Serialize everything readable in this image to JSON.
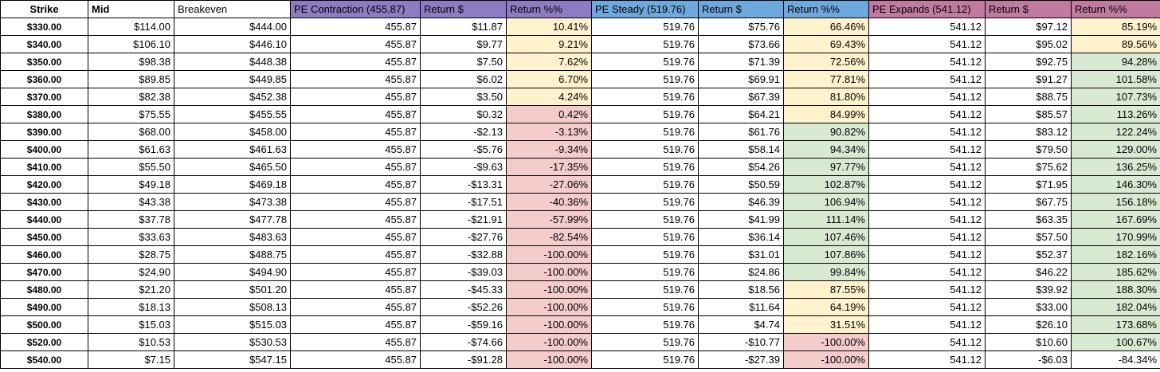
{
  "colors": {
    "contraction_header": "#8e7cc3",
    "steady_header": "#6fa8dc",
    "expands_header": "#c27ba0",
    "return_yellow": "#fff2cc",
    "return_red": "#f4cccc",
    "return_green": "#d9ead3"
  },
  "headers": [
    "Strike",
    "Mid",
    "Breakeven",
    "PE Contraction (455.87)",
    "Return $",
    "Return %%",
    "PE Steady (519.76)",
    "Return $",
    "Return %%",
    "PE Expands (541.12)",
    "Return $",
    "Return %%"
  ],
  "rows": [
    {
      "strike": "$330.00",
      "mid": "$114.00",
      "breakeven": "$444.00",
      "c_price": "455.87",
      "c_ret": "$11.87",
      "c_pct": "10.41%",
      "c_color": "yellow",
      "s_price": "519.76",
      "s_ret": "$75.76",
      "s_pct": "66.46%",
      "s_color": "yellow",
      "e_price": "541.12",
      "e_ret": "$97.12",
      "e_pct": "85.19%",
      "e_color": "yellow"
    },
    {
      "strike": "$340.00",
      "mid": "$106.10",
      "breakeven": "$446.10",
      "c_price": "455.87",
      "c_ret": "$9.77",
      "c_pct": "9.21%",
      "c_color": "yellow",
      "s_price": "519.76",
      "s_ret": "$73.66",
      "s_pct": "69.43%",
      "s_color": "yellow",
      "e_price": "541.12",
      "e_ret": "$95.02",
      "e_pct": "89.56%",
      "e_color": "yellow"
    },
    {
      "strike": "$350.00",
      "mid": "$98.38",
      "breakeven": "$448.38",
      "c_price": "455.87",
      "c_ret": "$7.50",
      "c_pct": "7.62%",
      "c_color": "yellow",
      "s_price": "519.76",
      "s_ret": "$71.39",
      "s_pct": "72.56%",
      "s_color": "yellow",
      "e_price": "541.12",
      "e_ret": "$92.75",
      "e_pct": "94.28%",
      "e_color": "green"
    },
    {
      "strike": "$360.00",
      "mid": "$89.85",
      "breakeven": "$449.85",
      "c_price": "455.87",
      "c_ret": "$6.02",
      "c_pct": "6.70%",
      "c_color": "yellow",
      "s_price": "519.76",
      "s_ret": "$69.91",
      "s_pct": "77.81%",
      "s_color": "yellow",
      "e_price": "541.12",
      "e_ret": "$91.27",
      "e_pct": "101.58%",
      "e_color": "green"
    },
    {
      "strike": "$370.00",
      "mid": "$82.38",
      "breakeven": "$452.38",
      "c_price": "455.87",
      "c_ret": "$3.50",
      "c_pct": "4.24%",
      "c_color": "yellow",
      "s_price": "519.76",
      "s_ret": "$67.39",
      "s_pct": "81.80%",
      "s_color": "yellow",
      "e_price": "541.12",
      "e_ret": "$88.75",
      "e_pct": "107.73%",
      "e_color": "green"
    },
    {
      "strike": "$380.00",
      "mid": "$75.55",
      "breakeven": "$455.55",
      "c_price": "455.87",
      "c_ret": "$0.32",
      "c_pct": "0.42%",
      "c_color": "red",
      "s_price": "519.76",
      "s_ret": "$64.21",
      "s_pct": "84.99%",
      "s_color": "yellow",
      "e_price": "541.12",
      "e_ret": "$85.57",
      "e_pct": "113.26%",
      "e_color": "green"
    },
    {
      "strike": "$390.00",
      "mid": "$68.00",
      "breakeven": "$458.00",
      "c_price": "455.87",
      "c_ret": "-$2.13",
      "c_pct": "-3.13%",
      "c_color": "red",
      "s_price": "519.76",
      "s_ret": "$61.76",
      "s_pct": "90.82%",
      "s_color": "green",
      "e_price": "541.12",
      "e_ret": "$83.12",
      "e_pct": "122.24%",
      "e_color": "green"
    },
    {
      "strike": "$400.00",
      "mid": "$61.63",
      "breakeven": "$461.63",
      "c_price": "455.87",
      "c_ret": "-$5.76",
      "c_pct": "-9.34%",
      "c_color": "red",
      "s_price": "519.76",
      "s_ret": "$58.14",
      "s_pct": "94.34%",
      "s_color": "green",
      "e_price": "541.12",
      "e_ret": "$79.50",
      "e_pct": "129.00%",
      "e_color": "green"
    },
    {
      "strike": "$410.00",
      "mid": "$55.50",
      "breakeven": "$465.50",
      "c_price": "455.87",
      "c_ret": "-$9.63",
      "c_pct": "-17.35%",
      "c_color": "red",
      "s_price": "519.76",
      "s_ret": "$54.26",
      "s_pct": "97.77%",
      "s_color": "green",
      "e_price": "541.12",
      "e_ret": "$75.62",
      "e_pct": "136.25%",
      "e_color": "green"
    },
    {
      "strike": "$420.00",
      "mid": "$49.18",
      "breakeven": "$469.18",
      "c_price": "455.87",
      "c_ret": "-$13.31",
      "c_pct": "-27.06%",
      "c_color": "red",
      "s_price": "519.76",
      "s_ret": "$50.59",
      "s_pct": "102.87%",
      "s_color": "green",
      "e_price": "541.12",
      "e_ret": "$71.95",
      "e_pct": "146.30%",
      "e_color": "green"
    },
    {
      "strike": "$430.00",
      "mid": "$43.38",
      "breakeven": "$473.38",
      "c_price": "455.87",
      "c_ret": "-$17.51",
      "c_pct": "-40.36%",
      "c_color": "red",
      "s_price": "519.76",
      "s_ret": "$46.39",
      "s_pct": "106.94%",
      "s_color": "green",
      "e_price": "541.12",
      "e_ret": "$67.75",
      "e_pct": "156.18%",
      "e_color": "green"
    },
    {
      "strike": "$440.00",
      "mid": "$37.78",
      "breakeven": "$477.78",
      "c_price": "455.87",
      "c_ret": "-$21.91",
      "c_pct": "-57.99%",
      "c_color": "red",
      "s_price": "519.76",
      "s_ret": "$41.99",
      "s_pct": "111.14%",
      "s_color": "green",
      "e_price": "541.12",
      "e_ret": "$63.35",
      "e_pct": "167.69%",
      "e_color": "green"
    },
    {
      "strike": "$450.00",
      "mid": "$33.63",
      "breakeven": "$483.63",
      "c_price": "455.87",
      "c_ret": "-$27.76",
      "c_pct": "-82.54%",
      "c_color": "red",
      "s_price": "519.76",
      "s_ret": "$36.14",
      "s_pct": "107.46%",
      "s_color": "green",
      "e_price": "541.12",
      "e_ret": "$57.50",
      "e_pct": "170.99%",
      "e_color": "green"
    },
    {
      "strike": "$460.00",
      "mid": "$28.75",
      "breakeven": "$488.75",
      "c_price": "455.87",
      "c_ret": "-$32.88",
      "c_pct": "-100.00%",
      "c_color": "red",
      "s_price": "519.76",
      "s_ret": "$31.01",
      "s_pct": "107.86%",
      "s_color": "green",
      "e_price": "541.12",
      "e_ret": "$52.37",
      "e_pct": "182.16%",
      "e_color": "green"
    },
    {
      "strike": "$470.00",
      "mid": "$24.90",
      "breakeven": "$494.90",
      "c_price": "455.87",
      "c_ret": "-$39.03",
      "c_pct": "-100.00%",
      "c_color": "red",
      "s_price": "519.76",
      "s_ret": "$24.86",
      "s_pct": "99.84%",
      "s_color": "green",
      "e_price": "541.12",
      "e_ret": "$46.22",
      "e_pct": "185.62%",
      "e_color": "green"
    },
    {
      "strike": "$480.00",
      "mid": "$21.20",
      "breakeven": "$501.20",
      "c_price": "455.87",
      "c_ret": "-$45.33",
      "c_pct": "-100.00%",
      "c_color": "red",
      "s_price": "519.76",
      "s_ret": "$18.56",
      "s_pct": "87.55%",
      "s_color": "yellow",
      "e_price": "541.12",
      "e_ret": "$39.92",
      "e_pct": "188.30%",
      "e_color": "green"
    },
    {
      "strike": "$490.00",
      "mid": "$18.13",
      "breakeven": "$508.13",
      "c_price": "455.87",
      "c_ret": "-$52.26",
      "c_pct": "-100.00%",
      "c_color": "red",
      "s_price": "519.76",
      "s_ret": "$11.64",
      "s_pct": "64.19%",
      "s_color": "yellow",
      "e_price": "541.12",
      "e_ret": "$33.00",
      "e_pct": "182.04%",
      "e_color": "green"
    },
    {
      "strike": "$500.00",
      "mid": "$15.03",
      "breakeven": "$515.03",
      "c_price": "455.87",
      "c_ret": "-$59.16",
      "c_pct": "-100.00%",
      "c_color": "red",
      "s_price": "519.76",
      "s_ret": "$4.74",
      "s_pct": "31.51%",
      "s_color": "yellow",
      "e_price": "541.12",
      "e_ret": "$26.10",
      "e_pct": "173.68%",
      "e_color": "green"
    },
    {
      "strike": "$520.00",
      "mid": "$10.53",
      "breakeven": "$530.53",
      "c_price": "455.87",
      "c_ret": "-$74.66",
      "c_pct": "-100.00%",
      "c_color": "red",
      "s_price": "519.76",
      "s_ret": "-$10.77",
      "s_pct": "-100.00%",
      "s_color": "red",
      "e_price": "541.12",
      "e_ret": "$10.60",
      "e_pct": "100.67%",
      "e_color": "green"
    },
    {
      "strike": "$540.00",
      "mid": "$7.15",
      "breakeven": "$547.15",
      "c_price": "455.87",
      "c_ret": "-$91.28",
      "c_pct": "-100.00%",
      "c_color": "red",
      "s_price": "519.76",
      "s_ret": "-$27.39",
      "s_pct": "-100.00%",
      "s_color": "red",
      "e_price": "541.12",
      "e_ret": "-$6.03",
      "e_pct": "-84.34%",
      "e_color": "none"
    }
  ]
}
